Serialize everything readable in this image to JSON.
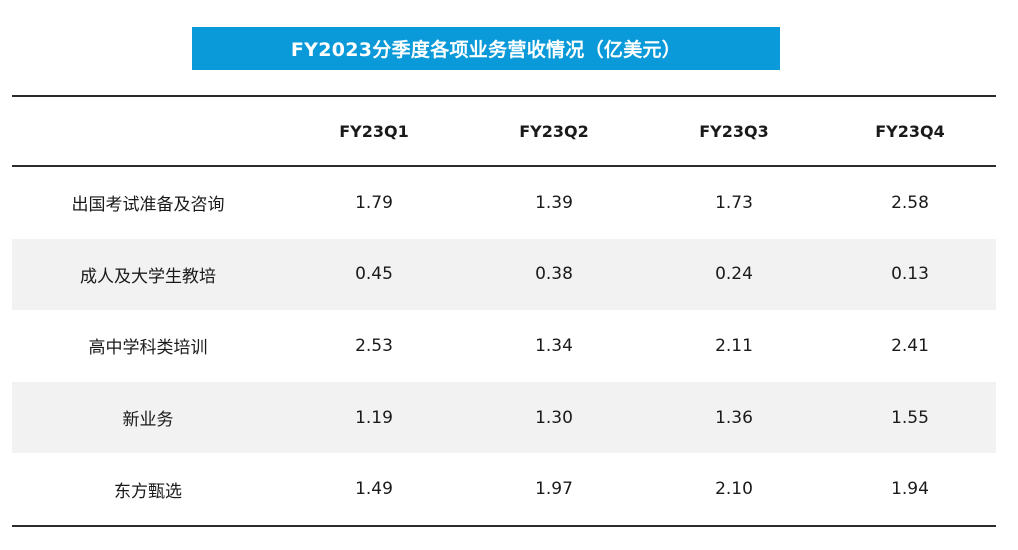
{
  "title": "FY2023分季度各项业务营收情况（亿美元）",
  "colors": {
    "banner_bg": "#0a9ad9",
    "banner_text": "#ffffff",
    "stripe": "#f2f2f2",
    "rule": "#2b2b2b"
  },
  "table": {
    "columns": [
      "",
      "FY23Q1",
      "FY23Q2",
      "FY23Q3",
      "FY23Q4"
    ],
    "rows": [
      {
        "label": "出国考试准备及咨询",
        "values": [
          "1.79",
          "1.39",
          "1.73",
          "2.58"
        ]
      },
      {
        "label": "成人及大学生教培",
        "values": [
          "0.45",
          "0.38",
          "0.24",
          "0.13"
        ]
      },
      {
        "label": "高中学科类培训",
        "values": [
          "2.53",
          "1.34",
          "2.11",
          "2.41"
        ]
      },
      {
        "label": "新业务",
        "values": [
          "1.19",
          "1.30",
          "1.36",
          "1.55"
        ]
      },
      {
        "label": "东方甄选",
        "values": [
          "1.49",
          "1.97",
          "2.10",
          "1.94"
        ]
      }
    ]
  }
}
